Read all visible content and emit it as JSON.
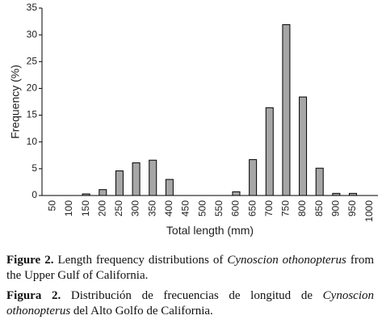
{
  "chart_data": {
    "type": "bar",
    "ylabel": "Frequency (%)",
    "xlabel": "Total length (mm)",
    "categories": [
      "50",
      "100",
      "150",
      "200",
      "250",
      "300",
      "350",
      "400",
      "450",
      "500",
      "550",
      "600",
      "650",
      "700",
      "750",
      "800",
      "850",
      "900",
      "950",
      "1000"
    ],
    "values": [
      0,
      0,
      0.3,
      1.1,
      4.6,
      6.1,
      6.6,
      3.0,
      0,
      0,
      0,
      0.7,
      6.7,
      16.4,
      31.9,
      18.4,
      5.1,
      0.4,
      0.4,
      0
    ],
    "color": "#a6a6a6",
    "ylim": [
      0,
      35
    ],
    "yticks": [
      0,
      5,
      10,
      15,
      20,
      25,
      30,
      35
    ],
    "grid": false
  },
  "captions": [
    {
      "label": "Figure 2.",
      "text_before": "Length frequency distributions of",
      "species": "Cynoscion othonopterus",
      "text_after": "from the Upper Gulf of California."
    },
    {
      "label": "Figura 2.",
      "text_before": "Distribución de frecuencias de longitud de",
      "species": "Cynoscion othonopterus",
      "text_after": "del Alto Golfo de California."
    }
  ]
}
